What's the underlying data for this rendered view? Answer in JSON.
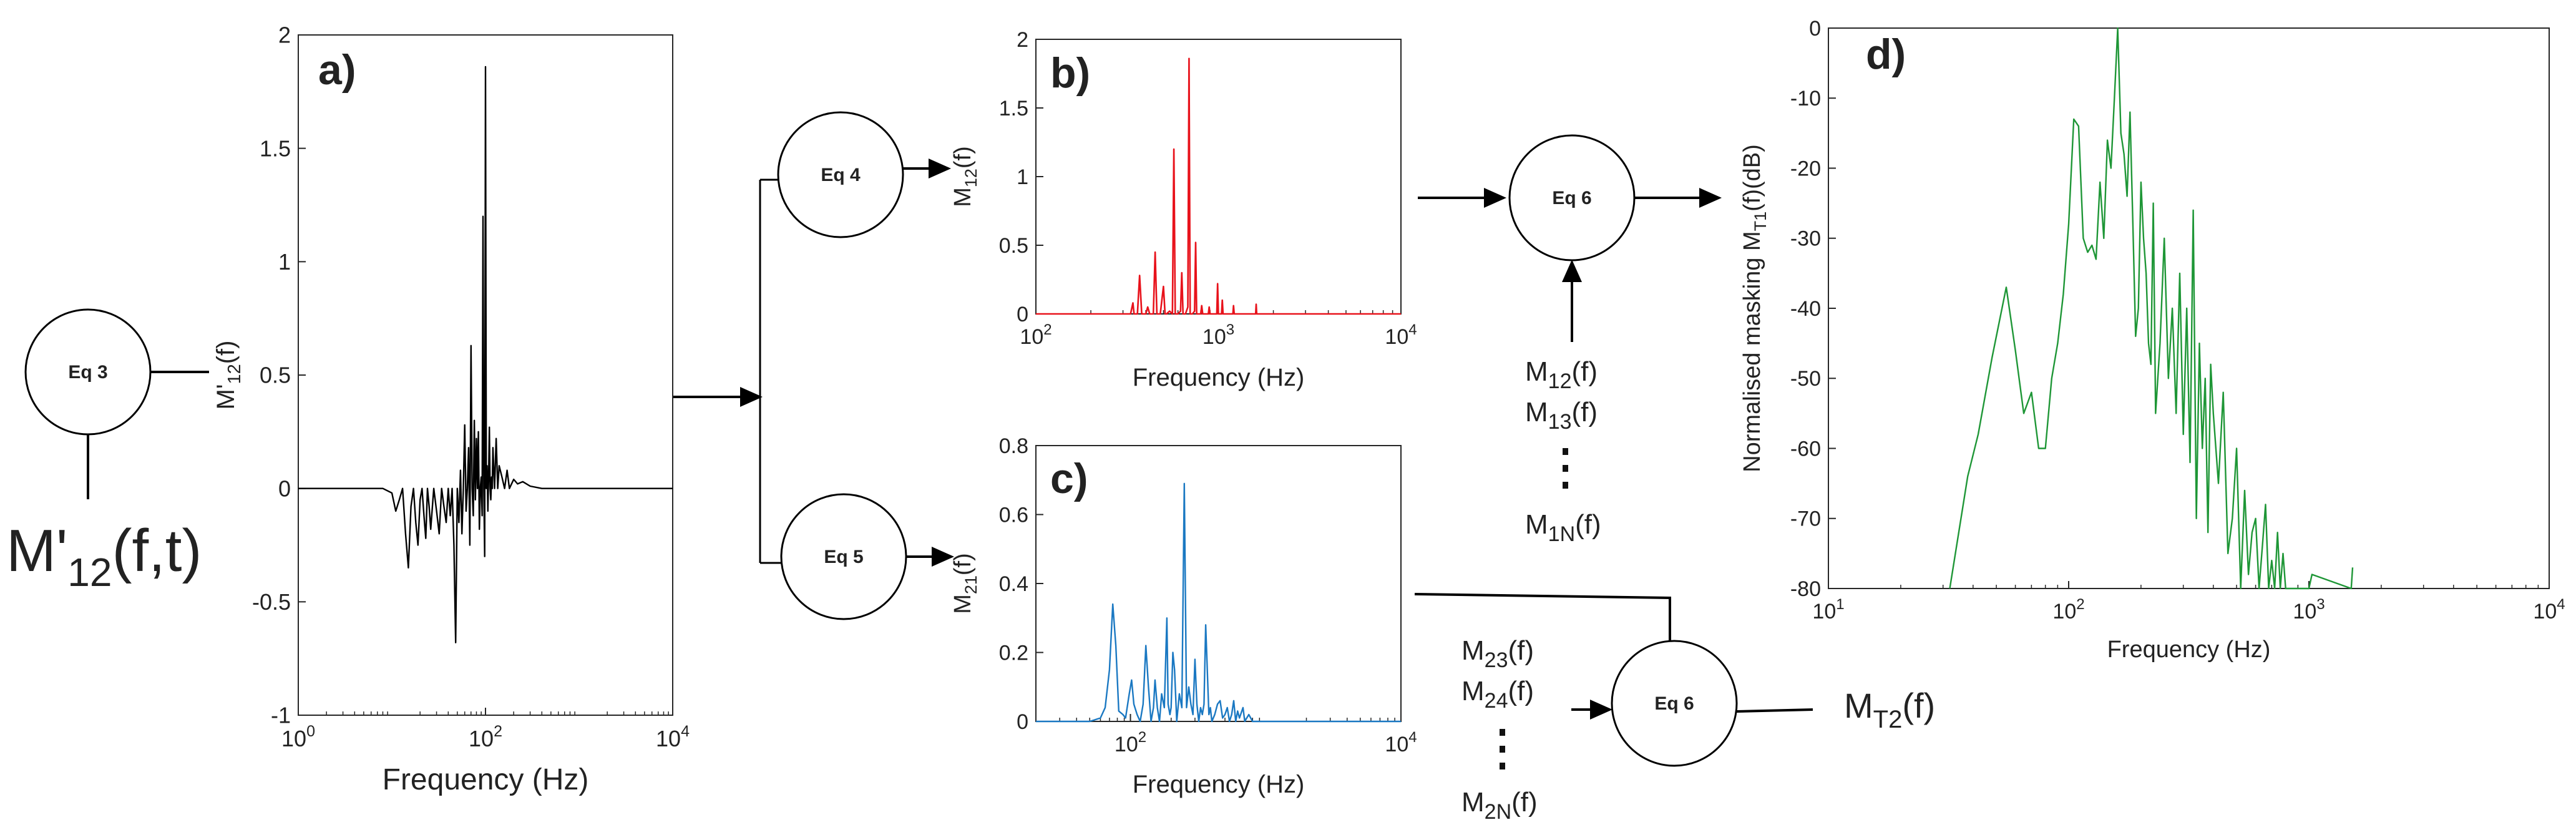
{
  "colors": {
    "a": "#000000",
    "b": "#e8121b",
    "c": "#1a78c2",
    "d": "#1e9636"
  },
  "input_label": {
    "main": "M'",
    "sub": "12",
    "tail": "(f,t)"
  },
  "eq_nodes": {
    "eq3": "Eq 3",
    "eq4": "Eq 4",
    "eq5": "Eq 5",
    "eq6_top": "Eq 6",
    "eq6_bottom": "Eq 6"
  },
  "outputs": {
    "mt2": {
      "main": "M",
      "sub": "T2",
      "tail": "(f)"
    }
  },
  "list_top": {
    "items": [
      {
        "main": "M",
        "sub": "12",
        "tail": "(f)"
      },
      {
        "main": "M",
        "sub": "13",
        "tail": "(f)"
      },
      {
        "main": "M",
        "sub": "1N",
        "tail": "(f)"
      }
    ]
  },
  "list_bottom": {
    "items": [
      {
        "main": "M",
        "sub": "23",
        "tail": "(f)"
      },
      {
        "main": "M",
        "sub": "24",
        "tail": "(f)"
      },
      {
        "main": "M",
        "sub": "2N",
        "tail": "(f)"
      }
    ]
  },
  "chart_data": [
    {
      "panel": "a)",
      "type": "line",
      "title": "",
      "xlabel": "Frequency (Hz)",
      "ylabel": {
        "main": "M'",
        "sub": "12",
        "tail": "(f)"
      },
      "xscale": "log",
      "xlim": [
        1,
        10000
      ],
      "ylim": [
        -1,
        2
      ],
      "xticks": [
        {
          "v": 1,
          "b": "10",
          "e": "0"
        },
        {
          "v": 100,
          "b": "10",
          "e": "2"
        },
        {
          "v": 10000,
          "b": "10",
          "e": "4"
        }
      ],
      "yticks": [
        {
          "v": -1,
          "l": "-1"
        },
        {
          "v": -0.5,
          "l": "-0.5"
        },
        {
          "v": 0,
          "l": "0"
        },
        {
          "v": 0.5,
          "l": "0.5"
        },
        {
          "v": 1,
          "l": "1"
        },
        {
          "v": 1.5,
          "l": "1.5"
        },
        {
          "v": 2,
          "l": "2"
        }
      ],
      "series": [
        {
          "name": "M'12(f)",
          "x": [
            1,
            8,
            10,
            11,
            12,
            13,
            14,
            15,
            16,
            17,
            18,
            19,
            20,
            21,
            22,
            23,
            24,
            25,
            26,
            28,
            30,
            32,
            34,
            36,
            38,
            40,
            42,
            44,
            46,
            48,
            50,
            52,
            54,
            56,
            58,
            60,
            62,
            64,
            66,
            68,
            70,
            72,
            74,
            76,
            78,
            80,
            82,
            84,
            86,
            88,
            90,
            92,
            94,
            96,
            98,
            100,
            102,
            104,
            106,
            108,
            110,
            112,
            114,
            116,
            118,
            120,
            125,
            130,
            135,
            140,
            150,
            160,
            170,
            180,
            200,
            220,
            250,
            300,
            400,
            10000
          ],
          "y": [
            0,
            0,
            -0.02,
            -0.1,
            -0.05,
            0,
            -0.2,
            -0.35,
            -0.08,
            0,
            -0.15,
            -0.25,
            -0.05,
            0,
            -0.12,
            -0.22,
            0,
            -0.08,
            -0.18,
            0,
            -0.1,
            -0.2,
            0,
            -0.08,
            -0.15,
            0,
            -0.12,
            0,
            -0.25,
            -0.68,
            0,
            -0.15,
            0.08,
            -0.2,
            0,
            0.28,
            -0.1,
            0,
            0.18,
            -0.25,
            0.63,
            0,
            -0.12,
            0.3,
            -0.05,
            0.22,
            0,
            0.25,
            -0.18,
            0,
            0.05,
            -0.12,
            1.2,
            0,
            -0.3,
            1.86,
            0,
            0.1,
            -0.1,
            0.05,
            0.27,
            0,
            -0.05,
            0.05,
            0,
            0.18,
            0,
            0.22,
            0,
            0.1,
            0.05,
            0,
            0.08,
            0,
            0.04,
            0.02,
            0.03,
            0.01,
            0,
            0
          ]
        }
      ]
    },
    {
      "panel": "b)",
      "type": "line",
      "title": "",
      "xlabel": "Frequency (Hz)",
      "ylabel": {
        "main": "M",
        "sub": "12",
        "tail": "(f)"
      },
      "xscale": "log",
      "xlim": [
        100,
        10000
      ],
      "ylim": [
        0,
        2
      ],
      "xticks": [
        {
          "v": 100,
          "b": "10",
          "e": "2"
        },
        {
          "v": 1000,
          "b": "10",
          "e": "3"
        },
        {
          "v": 10000,
          "b": "10",
          "e": "4"
        }
      ],
      "yticks": [
        {
          "v": 0,
          "l": "0"
        },
        {
          "v": 0.5,
          "l": "0.5"
        },
        {
          "v": 1,
          "l": "1"
        },
        {
          "v": 1.5,
          "l": "1.5"
        },
        {
          "v": 2,
          "l": "2"
        }
      ],
      "series": [
        {
          "name": "M12(f)",
          "x": [
            100,
            330,
            340,
            345,
            360,
            370,
            380,
            400,
            410,
            420,
            440,
            450,
            460,
            480,
            500,
            510,
            520,
            540,
            560,
            570,
            580,
            600,
            620,
            630,
            640,
            660,
            680,
            690,
            700,
            720,
            740,
            750,
            760,
            800,
            810,
            820,
            880,
            890,
            900,
            980,
            990,
            1000,
            1040,
            1050,
            1060,
            1200,
            1210,
            1220,
            1600,
            1610,
            1620,
            10000
          ],
          "y": [
            0,
            0,
            0.08,
            0,
            0,
            0.28,
            0,
            0,
            0.05,
            0,
            0,
            0.45,
            0,
            0,
            0.2,
            0,
            0,
            0.02,
            0,
            1.2,
            0,
            0,
            0.02,
            0.3,
            0,
            0,
            0.05,
            1.86,
            0,
            0,
            0.02,
            0.52,
            0,
            0,
            0.06,
            0,
            0,
            0.05,
            0,
            0,
            0.22,
            0,
            0,
            0.1,
            0,
            0,
            0.06,
            0,
            0,
            0.07,
            0,
            0
          ]
        }
      ]
    },
    {
      "panel": "c)",
      "type": "line",
      "title": "",
      "xlabel": "Frequency (Hz)",
      "ylabel": {
        "main": "M",
        "sub": "21",
        "tail": "(f)"
      },
      "xscale": "log",
      "xlim": [
        20,
        10000
      ],
      "ylim": [
        0,
        0.8
      ],
      "xticks": [
        {
          "v": 100,
          "b": "10",
          "e": "2"
        },
        {
          "v": 10000,
          "b": "10",
          "e": "4"
        }
      ],
      "yticks": [
        {
          "v": 0,
          "l": "0"
        },
        {
          "v": 0.2,
          "l": "0.2"
        },
        {
          "v": 0.4,
          "l": "0.4"
        },
        {
          "v": 0.6,
          "l": "0.6"
        },
        {
          "v": 0.8,
          "l": "0.8"
        }
      ],
      "series": [
        {
          "name": "M21(f)",
          "x": [
            20,
            50,
            60,
            65,
            70,
            74,
            78,
            82,
            88,
            92,
            98,
            102,
            106,
            112,
            118,
            124,
            130,
            136,
            142,
            148,
            152,
            158,
            164,
            170,
            178,
            186,
            190,
            196,
            200,
            206,
            212,
            220,
            230,
            240,
            250,
            260,
            270,
            280,
            290,
            300,
            310,
            320,
            330,
            340,
            350,
            360,
            380,
            390,
            400,
            420,
            440,
            460,
            480,
            500,
            520,
            540,
            560,
            580,
            600,
            620,
            640,
            680,
            700,
            750,
            800,
            10000
          ],
          "y": [
            0,
            0,
            0.01,
            0.04,
            0.15,
            0.34,
            0.22,
            0.03,
            0.02,
            0.01,
            0.08,
            0.12,
            0.05,
            0.02,
            0,
            0.05,
            0.22,
            0.1,
            0,
            0.04,
            0.12,
            0.04,
            0,
            0.08,
            0.04,
            0.3,
            0.05,
            0.02,
            0.04,
            0.2,
            0.15,
            0,
            0.08,
            0.04,
            0.69,
            0.04,
            0.1,
            0.05,
            0.02,
            0.18,
            0.05,
            0,
            0.04,
            0.02,
            0.05,
            0.28,
            0.02,
            0.04,
            0,
            0.02,
            0.05,
            0.06,
            0.01,
            0.02,
            0.04,
            0,
            0.02,
            0.06,
            0,
            0.03,
            0.01,
            0.04,
            0,
            0.02,
            0,
            0
          ]
        }
      ]
    },
    {
      "panel": "d)",
      "type": "line",
      "title": "",
      "xlabel": "Frequency (Hz)",
      "ylabel": {
        "main": "Normalised masking M",
        "sub": "T1",
        "tail": "(f)(dB)"
      },
      "xscale": "log",
      "xlim": [
        10,
        10000
      ],
      "ylim": [
        -80,
        0
      ],
      "xticks": [
        {
          "v": 10,
          "b": "10",
          "e": "1"
        },
        {
          "v": 100,
          "b": "10",
          "e": "2"
        },
        {
          "v": 1000,
          "b": "10",
          "e": "3"
        },
        {
          "v": 10000,
          "b": "10",
          "e": "4"
        }
      ],
      "yticks": [
        {
          "v": -80,
          "l": "-80"
        },
        {
          "v": -70,
          "l": "-70"
        },
        {
          "v": -60,
          "l": "-60"
        },
        {
          "v": -50,
          "l": "-50"
        },
        {
          "v": -40,
          "l": "-40"
        },
        {
          "v": -30,
          "l": "-30"
        },
        {
          "v": -20,
          "l": "-20"
        },
        {
          "v": -10,
          "l": "-10"
        },
        {
          "v": 0,
          "l": "0"
        }
      ],
      "series": [
        {
          "name": "MT1(f)",
          "x": [
            32,
            38,
            42,
            48,
            55,
            60,
            65,
            70,
            75,
            80,
            85,
            90,
            95,
            100,
            105,
            110,
            115,
            120,
            125,
            130,
            135,
            140,
            145,
            150,
            155,
            160,
            165,
            170,
            175,
            180,
            185,
            190,
            195,
            200,
            205,
            210,
            215,
            220,
            225,
            230,
            240,
            250,
            260,
            270,
            280,
            290,
            300,
            310,
            320,
            330,
            340,
            350,
            360,
            370,
            380,
            390,
            400,
            420,
            440,
            460,
            480,
            500,
            520,
            540,
            560,
            580,
            600,
            620,
            640,
            660,
            680,
            700,
            720,
            740,
            760,
            780,
            800,
            820,
            1000,
            1030,
            1500,
            1520
          ],
          "y": [
            -80,
            -64,
            -58,
            -47,
            -37,
            -46,
            -55,
            -52,
            -60,
            -60,
            -50,
            -45,
            -38,
            -28,
            -13,
            -14,
            -30,
            -32,
            -31,
            -33,
            -22,
            -30,
            -16,
            -20,
            -10,
            0,
            -15,
            -18,
            -24,
            -12,
            -28,
            -44,
            -40,
            -22,
            -30,
            -35,
            -45,
            -48,
            -25,
            -55,
            -45,
            -30,
            -50,
            -40,
            -55,
            -35,
            -58,
            -40,
            -62,
            -26,
            -70,
            -45,
            -60,
            -50,
            -72,
            -48,
            -55,
            -65,
            -52,
            -75,
            -70,
            -60,
            -80,
            -66,
            -78,
            -72,
            -70,
            -80,
            -74,
            -68,
            -80,
            -76,
            -80,
            -72,
            -80,
            -75,
            -80,
            -80,
            -80,
            -78,
            -80,
            -77
          ]
        }
      ]
    }
  ]
}
